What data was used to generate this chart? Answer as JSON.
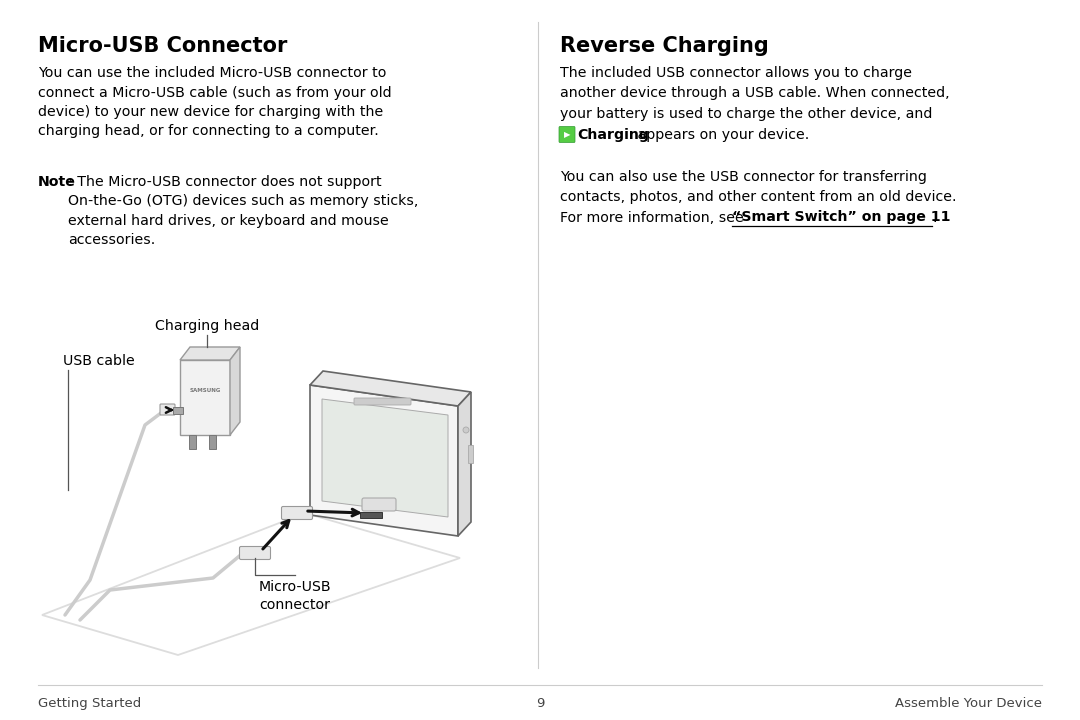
{
  "bg_color": "#ffffff",
  "left_title": "Micro-USB Connector",
  "right_title": "Reverse Charging",
  "left_para1": "You can use the included Micro-USB connector to\nconnect a Micro-USB cable (such as from your old\ndevice) to your new device for charging with the\ncharging head, or for connecting to a computer.",
  "left_note_bold": "Note",
  "left_note_rest": ": The Micro-USB connector does not support\nOn-the-Go (OTG) devices such as memory sticks,\nexternal hard drives, or keyboard and mouse\naccessories.",
  "right_para1_lines": [
    "The included USB connector allows you to charge",
    "another device through a USB cable. When connected,",
    "your battery is used to charge the other device, and"
  ],
  "right_para1_charging": " Charging appears on your device.",
  "right_para2_lines": [
    "You can also use the USB connector for transferring",
    "contacts, photos, and other content from an old device.",
    "For more information, see "
  ],
  "right_smart_switch": "“Smart Switch” on page 11",
  "label_charging_head": "Charging head",
  "label_usb_cable": "USB cable",
  "label_micro_usb_line1": "Micro-USB",
  "label_micro_usb_line2": "connector",
  "footer_left": "Getting Started",
  "footer_center": "9",
  "footer_right": "Assemble Your Device",
  "text_color": "#000000",
  "footer_color": "#444444",
  "line_color": "#bbbbbb",
  "charger_body_color": "#f2f2f2",
  "charger_edge_color": "#999999",
  "phone_body_color": "#f5f5f5",
  "phone_edge_color": "#666666",
  "connector_color": "#e8e8e8",
  "connector_edge": "#999999",
  "arrow_color": "#111111",
  "cable_color": "#cccccc",
  "surface_color": "#dddddd",
  "icon_green": "#55cc44",
  "icon_green_dark": "#339933"
}
